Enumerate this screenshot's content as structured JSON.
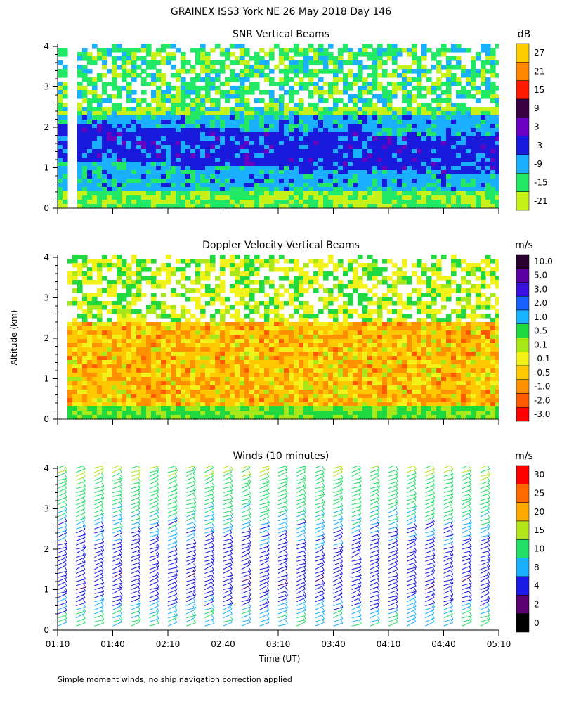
{
  "figure": {
    "title": "GRAINEX ISS3 York NE  26 May 2018 Day 146",
    "ylabel": "Altitude (km)",
    "xlabel": "Time (UT)",
    "footnote": "Simple moment winds, no ship navigation correction applied"
  },
  "chart_data": [
    {
      "type": "heatmap",
      "title": "SNR Vertical Beams",
      "units": "dB",
      "xlabel": "Time (UT)",
      "ylabel": "Altitude (km)",
      "x_range_ut": [
        "01:10",
        "05:10"
      ],
      "ylim": [
        0,
        4
      ],
      "yticks": [
        "0",
        "1",
        "2",
        "3",
        "4"
      ],
      "colorbar": {
        "labels": [
          "27",
          "21",
          "15",
          "9",
          "3",
          "-3",
          "-9",
          "-15",
          "-21"
        ],
        "colors": [
          "#ffcc00",
          "#ff8800",
          "#ff1a00",
          "#3a0040",
          "#6a00c0",
          "#1a1adc",
          "#1ab0ff",
          "#22e866",
          "#c6f21a"
        ]
      },
      "features": [
        {
          "altitude_km": "1.0-2.0",
          "level_db": "-3 to 3",
          "description": "strong blue/purple echo layer"
        },
        {
          "altitude_km": "0.2-1.0",
          "level_db": "-9 to -15",
          "description": "cyan/green boundary layer"
        },
        {
          "altitude_km": "2.5-4.0",
          "level_db": "-15 to -21",
          "description": "weak green/yellow returns with gaps"
        }
      ]
    },
    {
      "type": "heatmap",
      "title": "Doppler Velocity Vertical Beams",
      "units": "m/s",
      "xlabel": "Time (UT)",
      "ylabel": "Altitude (km)",
      "x_range_ut": [
        "01:10",
        "05:10"
      ],
      "ylim": [
        0,
        4
      ],
      "yticks": [
        "0",
        "1",
        "2",
        "3",
        "4"
      ],
      "colorbar": {
        "labels": [
          "10.0",
          "5.0",
          "3.0",
          "2.0",
          "1.0",
          "0.5",
          "0.1",
          "-0.1",
          "-0.5",
          "-1.0",
          "-2.0",
          "-3.0"
        ],
        "colors": [
          "#2a0030",
          "#5a00a0",
          "#3a10e0",
          "#1860ff",
          "#18b4ff",
          "#20d840",
          "#a8e81a",
          "#f2f21a",
          "#ffc800",
          "#ff9000",
          "#ff5a00",
          "#ff0000"
        ]
      },
      "features": [
        {
          "altitude_km": "0.2-2.8",
          "velocity_ms": "-0.5 to -2.0",
          "description": "predominantly orange/yellow downward motion"
        },
        {
          "altitude_km": "2.0-4.0",
          "velocity_ms": "-0.1 to 0.5",
          "description": "green/yellow near-zero velocities with gaps"
        }
      ]
    },
    {
      "type": "wind_barbs",
      "title": "Winds (10 minutes)",
      "units": "m/s",
      "xlabel": "Time (UT)",
      "ylabel": "Altitude (km)",
      "x_range_ut": [
        "01:10",
        "05:10"
      ],
      "xticks": [
        "01:10",
        "01:40",
        "02:10",
        "02:40",
        "03:10",
        "03:40",
        "04:10",
        "04:40",
        "05:10"
      ],
      "ylim": [
        0,
        4
      ],
      "yticks": [
        "0",
        "1",
        "2",
        "3",
        "4"
      ],
      "colorbar": {
        "labels": [
          "30",
          "25",
          "20",
          "15",
          "10",
          "8",
          "4",
          "2",
          "0"
        ],
        "colors": [
          "#ff0000",
          "#ff6a00",
          "#ffaa00",
          "#b0e61a",
          "#22dd66",
          "#1ab0ff",
          "#1a1ae6",
          "#5a0070",
          "#000000"
        ]
      },
      "profile_interval_min": 10,
      "speed_profile_ms": [
        {
          "altitude_km": 0.3,
          "speed": 10
        },
        {
          "altitude_km": 1.0,
          "speed": 5
        },
        {
          "altitude_km": 1.8,
          "speed": 6
        },
        {
          "altitude_km": 2.6,
          "speed": 9
        },
        {
          "altitude_km": 3.4,
          "speed": 13
        },
        {
          "altitude_km": 4.0,
          "speed": 15
        }
      ]
    }
  ]
}
